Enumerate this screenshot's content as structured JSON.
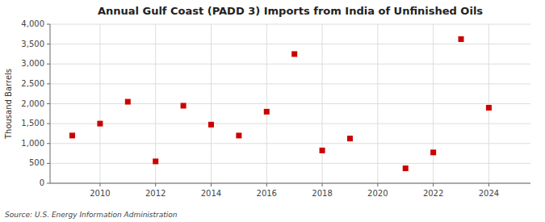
{
  "chart_data": {
    "type": "scatter",
    "title": "Annual Gulf Coast (PADD 3) Imports from India of Unfinished Oils",
    "y_label": "Thousand Barrels",
    "source": "Source: U.S. Energy Information Administration",
    "x": [
      2009,
      2010,
      2011,
      2012,
      2013,
      2014,
      2015,
      2016,
      2017,
      2018,
      2019,
      2021,
      2022,
      2023,
      2024
    ],
    "values": [
      1200,
      1500,
      2050,
      550,
      1950,
      1475,
      1200,
      1800,
      3250,
      825,
      1125,
      375,
      775,
      3625,
      1900
    ],
    "color": "#cc0000",
    "marker": "square",
    "xlim": [
      2008.2,
      2025.5
    ],
    "ylim": [
      0,
      4000
    ],
    "xticks": [
      2010,
      2012,
      2014,
      2016,
      2018,
      2020,
      2022,
      2024
    ],
    "yticks": [
      0,
      500,
      {
        "value": 1000,
        "label": "1,000"
      },
      {
        "value": 1500,
        "label": "1,500"
      },
      {
        "value": 2000,
        "label": "2,000"
      },
      {
        "value": 2500,
        "label": "2,500"
      },
      {
        "value": 3000,
        "label": "3,000"
      },
      {
        "value": 3500,
        "label": "3,500"
      },
      {
        "value": 4000,
        "label": "4,000"
      }
    ],
    "grid": true
  }
}
